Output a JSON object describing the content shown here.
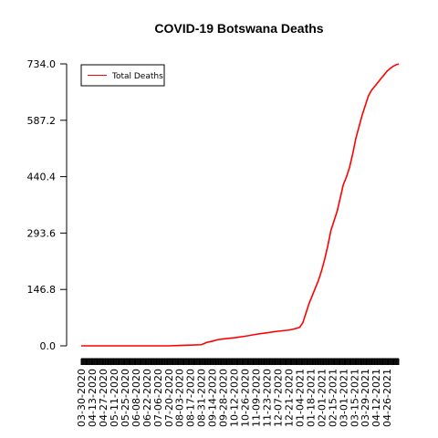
{
  "chart_data": {
    "type": "line",
    "title": "COVID-19 Botswana Deaths",
    "xlabel": "",
    "ylabel": "",
    "ylim": [
      0,
      734
    ],
    "yticks": [
      0.0,
      146.8,
      293.6,
      440.4,
      587.2,
      734.0
    ],
    "ytick_labels": [
      "0.0",
      "146.8",
      "293.6",
      "440.4",
      "587.2",
      "734.0"
    ],
    "xlim": [
      "2020-03-30",
      "2021-05-11"
    ],
    "xtick_labels": [
      "03-30-2020",
      "04-13-2020",
      "04-27-2020",
      "05-11-2020",
      "05-25-2020",
      "06-08-2020",
      "06-22-2020",
      "07-06-2020",
      "07-20-2020",
      "08-03-2020",
      "08-17-2020",
      "08-31-2020",
      "09-14-2020",
      "09-28-2020",
      "10-12-2020",
      "10-26-2020",
      "11-09-2020",
      "11-23-2020",
      "12-07-2020",
      "12-21-2020",
      "01-04-2021",
      "01-18-2021",
      "02-01-2021",
      "02-15-2021",
      "03-01-2021",
      "03-15-2021",
      "03-29-2021",
      "04-12-2021",
      "04-26-2021"
    ],
    "color": "#ff0000",
    "legend": {
      "position": "top-left",
      "entries": [
        "Total Deaths"
      ]
    },
    "grid": false,
    "series": [
      {
        "name": "Total Deaths",
        "x": [
          "2020-03-30",
          "2020-04-13",
          "2020-05-11",
          "2020-06-08",
          "2020-07-06",
          "2020-07-20",
          "2020-08-03",
          "2020-08-17",
          "2020-08-31",
          "2020-09-07",
          "2020-09-14",
          "2020-09-21",
          "2020-09-28",
          "2020-10-12",
          "2020-10-26",
          "2020-11-09",
          "2020-11-23",
          "2020-12-07",
          "2020-12-21",
          "2020-12-28",
          "2021-01-04",
          "2021-01-08",
          "2021-01-12",
          "2021-01-16",
          "2021-01-20",
          "2021-01-24",
          "2021-01-28",
          "2021-02-01",
          "2021-02-05",
          "2021-02-09",
          "2021-02-13",
          "2021-02-17",
          "2021-02-21",
          "2021-02-25",
          "2021-03-01",
          "2021-03-05",
          "2021-03-09",
          "2021-03-13",
          "2021-03-17",
          "2021-03-21",
          "2021-03-25",
          "2021-03-29",
          "2021-04-02",
          "2021-04-06",
          "2021-04-10",
          "2021-04-14",
          "2021-04-18",
          "2021-04-22",
          "2021-04-26",
          "2021-04-30",
          "2021-05-04",
          "2021-05-08",
          "2021-05-11"
        ],
        "y": [
          0,
          0,
          0,
          0,
          0,
          0,
          1,
          2,
          3,
          9,
          12,
          16,
          18,
          21,
          25,
          30,
          34,
          38,
          41,
          44,
          48,
          60,
          85,
          110,
          130,
          150,
          170,
          195,
          225,
          260,
          300,
          325,
          350,
          385,
          420,
          440,
          465,
          500,
          540,
          570,
          600,
          625,
          650,
          665,
          675,
          685,
          695,
          705,
          715,
          722,
          728,
          732,
          734
        ]
      }
    ]
  }
}
